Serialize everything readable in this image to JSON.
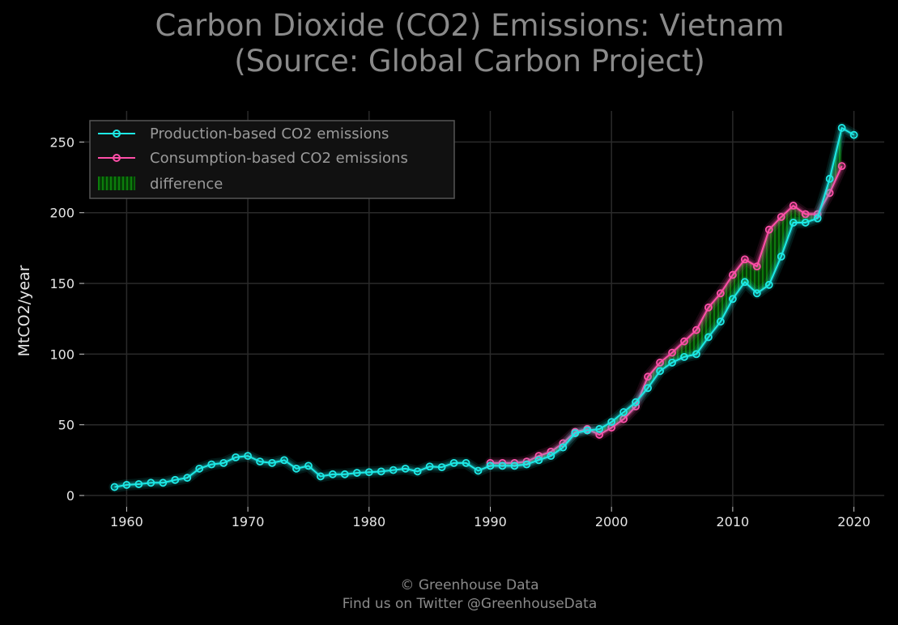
{
  "title": {
    "line1": "Carbon Dioxide (CO2) Emissions: Vietnam",
    "line2": "(Source: Global Carbon Project)"
  },
  "footer": {
    "line1": "© Greenhouse Data",
    "line2": "Find us on Twitter @GreenhouseData"
  },
  "colors": {
    "background": "#000000",
    "production": "#1de9e6",
    "consumption": "#ff4fa8",
    "difference": "#0a7a0a",
    "grid": "#2a2a2a",
    "text": "#e6e6e6",
    "muted": "#8a8a8a"
  },
  "chart_data": {
    "type": "line",
    "title": "Carbon Dioxide (CO2) Emissions: Vietnam (Source: Global Carbon Project)",
    "xlabel": "",
    "ylabel": "MtCO2/year",
    "xlim": [
      1956.5,
      2022.5
    ],
    "ylim": [
      -8,
      272
    ],
    "xticks": [
      1960,
      1970,
      1980,
      1990,
      2000,
      2010,
      2020
    ],
    "yticks": [
      0,
      50,
      100,
      150,
      200,
      250
    ],
    "grid": true,
    "legend_position": "top-left",
    "legend": [
      "Production-based CO2 emissions",
      "Consumption-based CO2 emissions",
      "difference"
    ],
    "series": [
      {
        "name": "Production-based CO2 emissions",
        "x": [
          1959,
          1960,
          1961,
          1962,
          1963,
          1964,
          1965,
          1966,
          1967,
          1968,
          1969,
          1970,
          1971,
          1972,
          1973,
          1974,
          1975,
          1976,
          1977,
          1978,
          1979,
          1980,
          1981,
          1982,
          1983,
          1984,
          1985,
          1986,
          1987,
          1988,
          1989,
          1990,
          1991,
          1992,
          1993,
          1994,
          1995,
          1996,
          1997,
          1998,
          1999,
          2000,
          2001,
          2002,
          2003,
          2004,
          2005,
          2006,
          2007,
          2008,
          2009,
          2010,
          2011,
          2012,
          2013,
          2014,
          2015,
          2016,
          2017,
          2018,
          2019,
          2020
        ],
        "values": [
          6,
          7.5,
          8,
          9,
          9,
          11,
          12.5,
          19,
          22,
          23,
          27,
          28,
          24,
          23,
          25,
          19,
          21,
          13.5,
          15,
          15,
          16,
          16.5,
          17,
          18,
          19,
          17,
          20.5,
          20,
          23,
          23,
          17.5,
          21,
          21,
          21,
          22,
          25,
          28,
          34,
          44,
          46,
          47,
          52,
          59,
          66,
          76,
          88,
          94,
          98,
          100,
          112,
          123,
          139,
          151,
          143,
          149,
          169,
          193,
          193,
          196,
          224,
          260,
          255
        ]
      },
      {
        "name": "Consumption-based CO2 emissions",
        "x": [
          1990,
          1991,
          1992,
          1993,
          1994,
          1995,
          1996,
          1997,
          1998,
          1999,
          2000,
          2001,
          2002,
          2003,
          2004,
          2005,
          2006,
          2007,
          2008,
          2009,
          2010,
          2011,
          2012,
          2013,
          2014,
          2015,
          2016,
          2017,
          2018,
          2019
        ],
        "values": [
          23,
          23,
          23,
          24,
          28,
          31,
          37,
          45,
          47,
          43,
          48,
          54,
          63,
          84,
          94,
          101,
          109,
          117,
          133,
          143,
          156,
          167,
          162,
          188,
          197,
          205,
          199,
          199,
          214,
          233
        ]
      }
    ]
  }
}
